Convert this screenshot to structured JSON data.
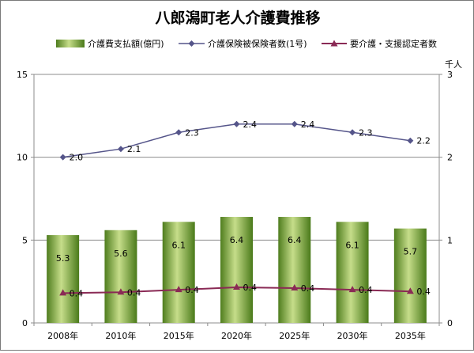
{
  "chart_data": {
    "type": "bar+line",
    "title": "八郎潟町老人介護費推移",
    "categories": [
      "2008年",
      "2010年",
      "2015年",
      "2020年",
      "2025年",
      "2030年",
      "2035年"
    ],
    "y_left": {
      "range": [
        0,
        15
      ],
      "ticks": [
        "0",
        "5",
        "10",
        "15"
      ]
    },
    "y_right": {
      "range": [
        0,
        3
      ],
      "ticks": [
        "0",
        "1",
        "2",
        "3"
      ],
      "unit": "千人"
    },
    "grid": true,
    "legend_position": "top",
    "series": [
      {
        "name": "介護費支払額(億円)",
        "type": "bar",
        "axis": "left",
        "color": "#6a9a2c",
        "values": [
          5.3,
          5.6,
          6.1,
          6.4,
          6.4,
          6.1,
          5.7
        ],
        "labels": [
          "5.3",
          "5.6",
          "6.1",
          "6.4",
          "6.4",
          "6.1",
          "5.7"
        ]
      },
      {
        "name": "介護保険被保険者数(1号)",
        "type": "line",
        "axis": "right",
        "color": "#55558a",
        "marker": "diamond",
        "values": [
          2.0,
          2.1,
          2.3,
          2.4,
          2.4,
          2.3,
          2.2
        ],
        "labels": [
          "2.0",
          "2.1",
          "2.3",
          "2.4",
          "2.4",
          "2.3",
          "2.2"
        ]
      },
      {
        "name": "要介護・支援認定者数",
        "type": "line",
        "axis": "right",
        "color": "#8a2a55",
        "marker": "triangle",
        "values": [
          0.36,
          0.37,
          0.4,
          0.43,
          0.42,
          0.4,
          0.38
        ],
        "labels": [
          "0.4",
          "0.4",
          "0.4",
          "0.4",
          "0.4",
          "0.4",
          "0.4"
        ]
      }
    ]
  }
}
